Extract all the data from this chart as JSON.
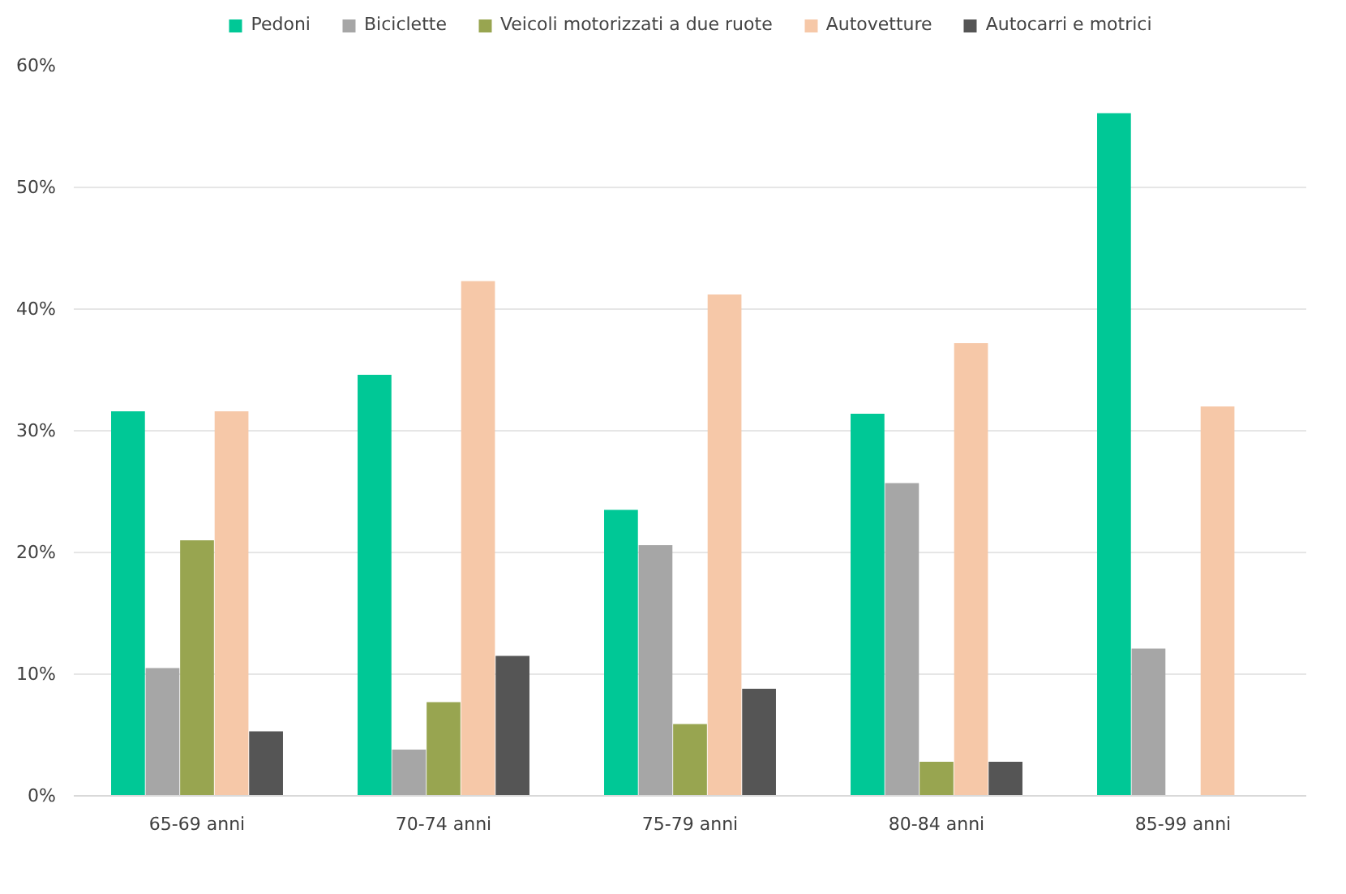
{
  "chart_data": {
    "type": "bar",
    "categories": [
      "65-69 anni",
      "70-74 anni",
      "75-79 anni",
      "80-84 anni",
      "85-99 anni"
    ],
    "series": [
      {
        "name": "Pedoni",
        "color": "#00c896",
        "values": [
          31.6,
          34.6,
          23.5,
          31.4,
          56.1
        ]
      },
      {
        "name": "Biciclette",
        "color": "#a6a6a6",
        "values": [
          10.5,
          3.8,
          20.6,
          25.7,
          12.1
        ]
      },
      {
        "name": "Veicoli motorizzati a due ruote",
        "color": "#98a550",
        "values": [
          21.0,
          7.7,
          5.9,
          2.8,
          null
        ]
      },
      {
        "name": "Autovetture",
        "color": "#f6c8a8",
        "values": [
          31.6,
          42.3,
          41.2,
          37.2,
          32.0
        ]
      },
      {
        "name": "Autocarri e motrici",
        "color": "#555555",
        "values": [
          5.3,
          11.5,
          8.8,
          2.8,
          null
        ]
      }
    ],
    "ylim": [
      0,
      60
    ],
    "yticks": [
      {
        "value": 0,
        "label": "0%"
      },
      {
        "value": 10,
        "label": "10%"
      },
      {
        "value": 20,
        "label": "20%"
      },
      {
        "value": 30,
        "label": "30%"
      },
      {
        "value": 40,
        "label": "40%"
      },
      {
        "value": 50,
        "label": "50%"
      },
      {
        "value": 60,
        "label": "60%"
      }
    ],
    "grid": "y",
    "legend": "top"
  }
}
